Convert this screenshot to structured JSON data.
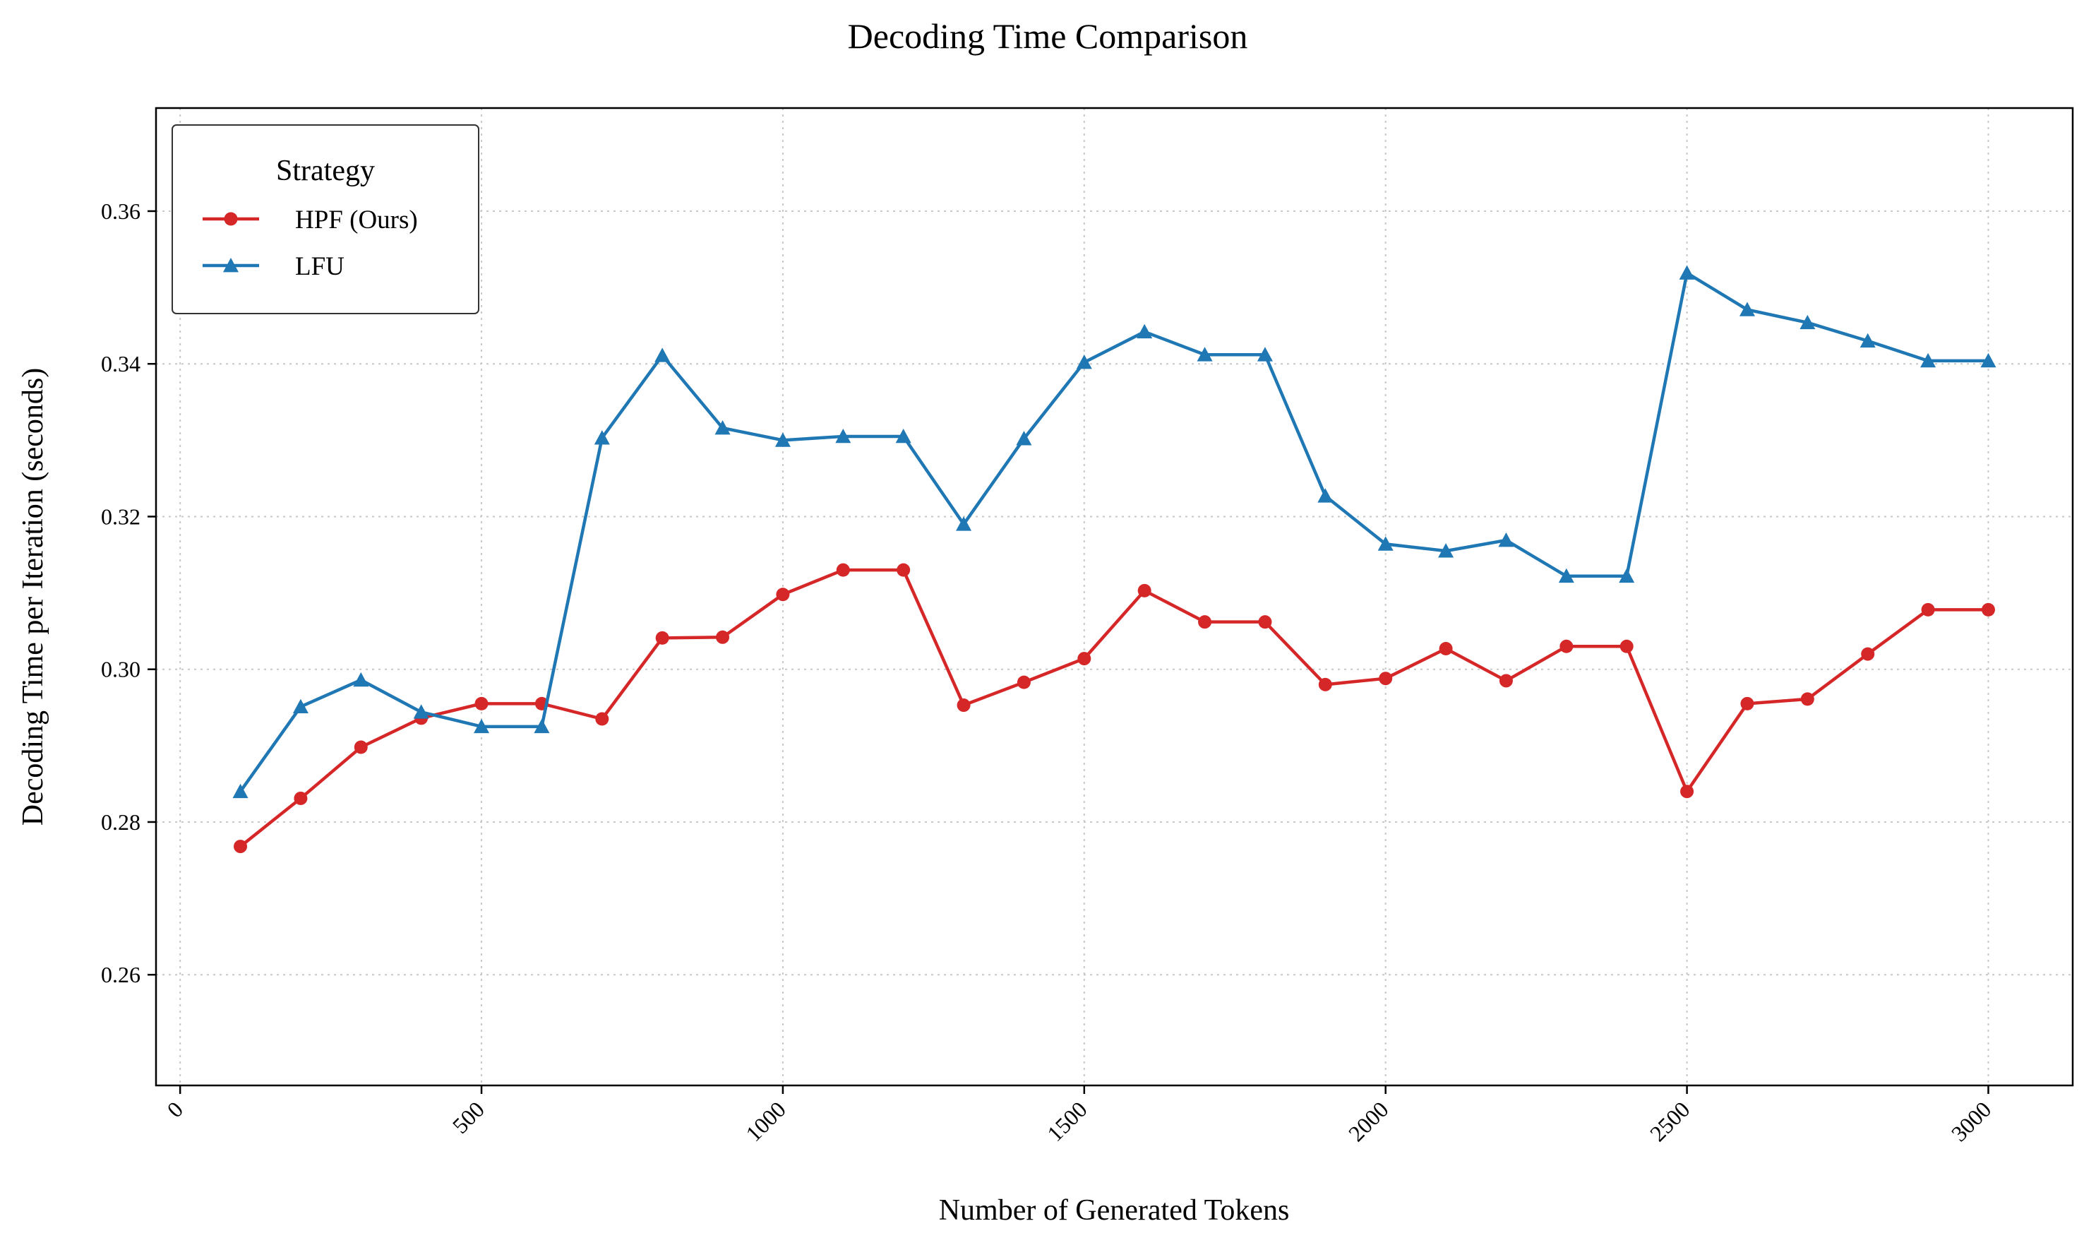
{
  "chart_data": {
    "type": "line",
    "title": "Decoding Time Comparison",
    "xlabel": "Number of Generated Tokens",
    "ylabel": "Decoding Time per Iteration (seconds)",
    "xlim": [
      -40,
      3140
    ],
    "ylim": [
      0.2455,
      0.3735
    ],
    "xticks": [
      0,
      500,
      1000,
      1500,
      2000,
      2500,
      3000
    ],
    "xtick_labels": [
      "0",
      "500",
      "1000",
      "1500",
      "2000",
      "2500",
      "3000"
    ],
    "yticks": [
      0.26,
      0.28,
      0.3,
      0.32,
      0.34,
      0.36
    ],
    "ytick_labels": [
      "0.26",
      "0.28",
      "0.30",
      "0.32",
      "0.34",
      "0.36"
    ],
    "grid": true,
    "legend": {
      "title": "Strategy",
      "placement": "top-left"
    },
    "x": [
      100,
      200,
      300,
      400,
      500,
      600,
      700,
      800,
      900,
      1000,
      1100,
      1200,
      1300,
      1400,
      1500,
      1600,
      1700,
      1800,
      1900,
      2000,
      2100,
      2200,
      2300,
      2400,
      2500,
      2600,
      2700,
      2800,
      2900,
      3000
    ],
    "series": [
      {
        "name": "HPF (Ours)",
        "color": "#d62728",
        "marker": "circle",
        "values": [
          0.2768,
          0.2831,
          0.2898,
          0.2936,
          0.2955,
          0.2955,
          0.2935,
          0.3041,
          0.3042,
          0.3098,
          0.313,
          0.313,
          0.2953,
          0.2983,
          0.3014,
          0.3103,
          0.3062,
          0.3062,
          0.298,
          0.2988,
          0.3027,
          0.2985,
          0.303,
          0.303,
          0.284,
          0.2955,
          0.2961,
          0.302,
          0.3078,
          0.3078
        ]
      },
      {
        "name": "LFU",
        "color": "#1f77b4",
        "marker": "triangle",
        "values": [
          0.284,
          0.2951,
          0.2986,
          0.2944,
          0.2925,
          0.2925,
          0.3303,
          0.3411,
          0.3316,
          0.33,
          0.3305,
          0.3305,
          0.319,
          0.3302,
          0.3402,
          0.3442,
          0.3412,
          0.3412,
          0.3227,
          0.3164,
          0.3155,
          0.3169,
          0.3122,
          0.3122,
          0.3519,
          0.3471,
          0.3454,
          0.343,
          0.3404,
          0.3404
        ]
      }
    ]
  }
}
